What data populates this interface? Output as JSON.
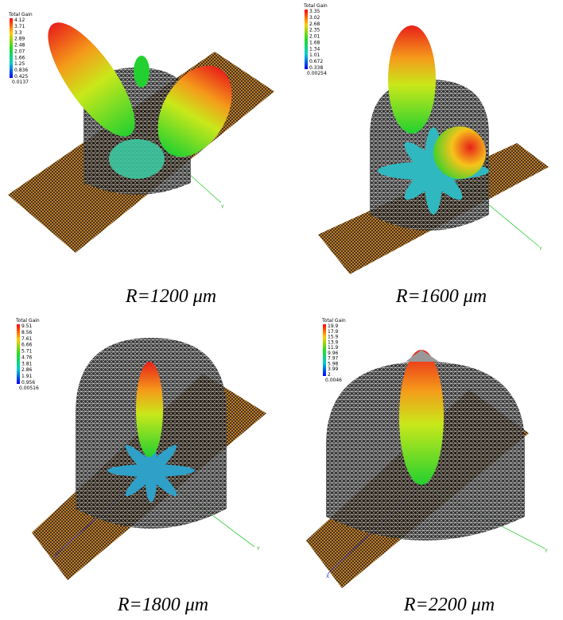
{
  "panels": [
    {
      "caption": "R=1200 μm",
      "legend": {
        "title": "Total Gain",
        "labels": [
          "4.12",
          "3.71",
          "3.3",
          "2.89",
          "2.48",
          "2.07",
          "1.66",
          "1.25",
          "0.836",
          "0.425",
          "0.0137"
        ]
      },
      "axes": [
        "Y"
      ]
    },
    {
      "caption": "R=1600 μm",
      "legend": {
        "title": "Total Gain",
        "labels": [
          "3.35",
          "3.02",
          "2.68",
          "2.35",
          "2.01",
          "1.68",
          "1.34",
          "1.01",
          "0.672",
          "0.338",
          "0.00254"
        ]
      },
      "axes": [
        "Y"
      ]
    },
    {
      "caption": "R=1800 μm",
      "legend": {
        "title": "Total Gain",
        "labels": [
          "9.51",
          "8.56",
          "7.61",
          "6.66",
          "5.71",
          "4.76",
          "3.81",
          "2.86",
          "1.91",
          "0.956",
          "0.00516"
        ]
      },
      "axes": [
        "X",
        "Y"
      ]
    },
    {
      "caption": "R=2200 μm",
      "legend": {
        "title": "Total Gain",
        "labels": [
          "19.9",
          "17.9",
          "15.9",
          "13.9",
          "11.9",
          "9.96",
          "7.97",
          "5.98",
          "3.99",
          "2",
          "0.0046"
        ]
      },
      "axes": [
        "X",
        "Y"
      ]
    }
  ]
}
